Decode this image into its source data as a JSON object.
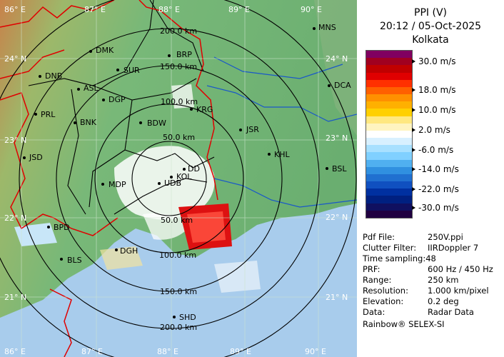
{
  "header": {
    "product": "PPI (V)",
    "datetime": "20:12 / 05-Oct-2025",
    "station": "Kolkata"
  },
  "colors": {
    "land_low": "#7fbf7f",
    "land_high": "#c8824a",
    "sea": "#a8ccec",
    "border_district": "#000000",
    "border_state": "#e00000",
    "river": "#1a58c8"
  },
  "legend": {
    "colors": [
      "#800060",
      "#a00020",
      "#c00000",
      "#e00000",
      "#ff3000",
      "#ff6000",
      "#ff9000",
      "#ffb000",
      "#ffd000",
      "#ffe880",
      "#fff4c0",
      "#ffffff",
      "#d8f0ff",
      "#a8e0ff",
      "#80d0ff",
      "#50b0f0",
      "#3090e0",
      "#2070d0",
      "#1050c0",
      "#0030a0",
      "#002080",
      "#101060",
      "#200040"
    ],
    "labels": [
      "30.0 m/s",
      "18.0 m/s",
      "10.0 m/s",
      "2.0 m/s",
      "-6.0 m/s",
      "-14.0 m/s",
      "-22.0 m/s",
      "-30.0 m/s"
    ]
  },
  "info": {
    "pdf_file": {
      "label": "Pdf File:",
      "value": "250V.ppi"
    },
    "clutter_filter": {
      "label": "Clutter Filter:",
      "value": "IIRDoppler 7"
    },
    "time_sampling": {
      "label": "Time sampling:",
      "value": "48"
    },
    "prf": {
      "label": "PRF:",
      "value": "600 Hz / 450 Hz"
    },
    "range": {
      "label": "Range:",
      "value": "250 km"
    },
    "resolution": {
      "label": "Resolution:",
      "value": "1.000 km/pixel"
    },
    "elevation": {
      "label": "Elevation:",
      "value": "0.2 deg"
    },
    "data": {
      "label": "Data:",
      "value": "Radar Data"
    }
  },
  "footer": "Rainbow® SELEX-SI",
  "map": {
    "lon_labels": [
      "86° E",
      "87° E",
      "88° E",
      "89° E",
      "90° E"
    ],
    "lat_labels": [
      "24° N",
      "23° N",
      "22° N",
      "21° N"
    ],
    "range_rings": [
      "50.0 km",
      "100.0 km",
      "150.0 km",
      "200.0 km"
    ],
    "stations": [
      "DMK",
      "BRP",
      "MNS",
      "DNB",
      "SUR",
      "ASL",
      "DGP",
      "DCA",
      "PRL",
      "BNK",
      "BDW",
      "KRG",
      "JSR",
      "KHL",
      "JSD",
      "DD",
      "KOL",
      "BSL",
      "MDP",
      "UDB",
      "BPD",
      "DGH",
      "BLS",
      "SHD"
    ]
  }
}
